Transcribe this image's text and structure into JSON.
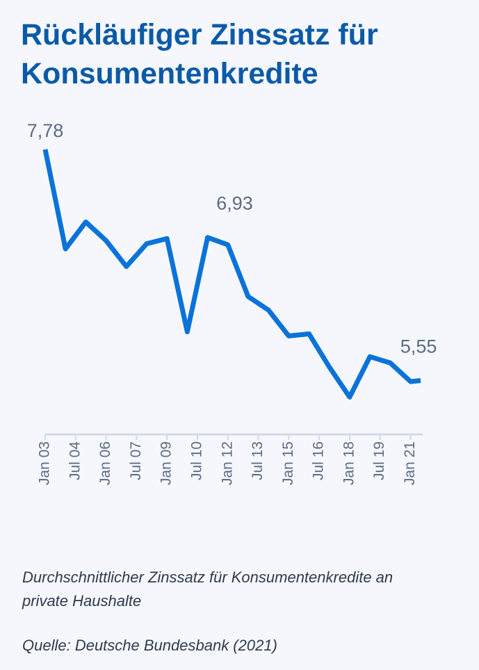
{
  "chart_data": {
    "type": "line",
    "title": "Rückläufiger Zinssatz für Konsumentenkredite",
    "subtitle": "Durchschnittlicher Zinssatz für Konsumentenkredite an private Haushalte",
    "source": "Quelle: Deutsche Bundesbank (2021)",
    "x": [
      2003,
      2004,
      2005,
      2006,
      2007,
      2008,
      2009,
      2010,
      2011,
      2012,
      2013,
      2014,
      2015,
      2016,
      2017,
      2018,
      2019,
      2020,
      2021,
      2021.5
    ],
    "values": [
      7.78,
      6.82,
      7.08,
      6.9,
      6.65,
      6.87,
      6.92,
      6.02,
      6.93,
      6.86,
      6.36,
      6.23,
      5.98,
      6.0,
      5.68,
      5.39,
      5.78,
      5.72,
      5.54,
      5.55
    ],
    "value_labels": [
      "7,78",
      null,
      null,
      null,
      null,
      null,
      null,
      null,
      "6,93",
      null,
      null,
      null,
      null,
      null,
      null,
      null,
      null,
      null,
      null,
      "5,55"
    ],
    "color": "#0a73d9",
    "xlim": [
      2003,
      2021.6
    ],
    "ylim": [
      5.03,
      7.78
    ],
    "xticks": [
      {
        "value": 2003,
        "label": "Jan 03"
      },
      {
        "value": 2004.5,
        "label": "Jul 04"
      },
      {
        "value": 2006,
        "label": "Jan 06"
      },
      {
        "value": 2007.5,
        "label": "Jul 07"
      },
      {
        "value": 2009,
        "label": "Jan 09"
      },
      {
        "value": 2010.5,
        "label": "Jul 10"
      },
      {
        "value": 2012,
        "label": "Jan 12"
      },
      {
        "value": 2013.5,
        "label": "Jul 13"
      },
      {
        "value": 2015,
        "label": "Jan 15"
      },
      {
        "value": 2016.5,
        "label": "Jul 16"
      },
      {
        "value": 2018,
        "label": "Jan 18"
      },
      {
        "value": 2019.5,
        "label": "Jul 19"
      },
      {
        "value": 2021,
        "label": "Jan 21"
      }
    ],
    "grid": false
  }
}
